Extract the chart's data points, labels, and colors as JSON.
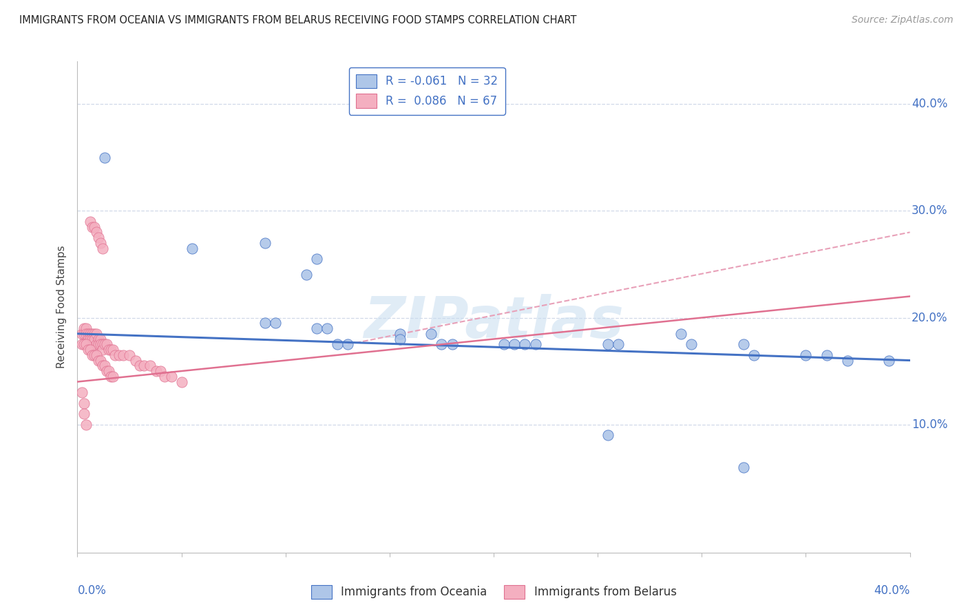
{
  "title": "IMMIGRANTS FROM OCEANIA VS IMMIGRANTS FROM BELARUS RECEIVING FOOD STAMPS CORRELATION CHART",
  "source": "Source: ZipAtlas.com",
  "ylabel": "Receiving Food Stamps",
  "ytick_labels": [
    "10.0%",
    "20.0%",
    "30.0%",
    "40.0%"
  ],
  "ytick_values": [
    0.1,
    0.2,
    0.3,
    0.4
  ],
  "xlim": [
    0.0,
    0.4
  ],
  "ylim": [
    -0.02,
    0.44
  ],
  "watermark": "ZIPatlas",
  "oceania_scatter": [
    [
      0.013,
      0.35
    ],
    [
      0.055,
      0.265
    ],
    [
      0.09,
      0.27
    ],
    [
      0.115,
      0.255
    ],
    [
      0.11,
      0.24
    ],
    [
      0.09,
      0.195
    ],
    [
      0.095,
      0.195
    ],
    [
      0.115,
      0.19
    ],
    [
      0.12,
      0.19
    ],
    [
      0.125,
      0.175
    ],
    [
      0.13,
      0.175
    ],
    [
      0.155,
      0.185
    ],
    [
      0.155,
      0.18
    ],
    [
      0.17,
      0.185
    ],
    [
      0.175,
      0.175
    ],
    [
      0.18,
      0.175
    ],
    [
      0.205,
      0.175
    ],
    [
      0.21,
      0.175
    ],
    [
      0.215,
      0.175
    ],
    [
      0.22,
      0.175
    ],
    [
      0.255,
      0.175
    ],
    [
      0.26,
      0.175
    ],
    [
      0.29,
      0.185
    ],
    [
      0.295,
      0.175
    ],
    [
      0.32,
      0.175
    ],
    [
      0.325,
      0.165
    ],
    [
      0.35,
      0.165
    ],
    [
      0.36,
      0.165
    ],
    [
      0.37,
      0.16
    ],
    [
      0.39,
      0.16
    ],
    [
      0.255,
      0.09
    ],
    [
      0.32,
      0.06
    ]
  ],
  "belarus_scatter": [
    [
      0.002,
      0.185
    ],
    [
      0.003,
      0.19
    ],
    [
      0.003,
      0.185
    ],
    [
      0.004,
      0.19
    ],
    [
      0.004,
      0.185
    ],
    [
      0.005,
      0.185
    ],
    [
      0.005,
      0.18
    ],
    [
      0.006,
      0.185
    ],
    [
      0.006,
      0.18
    ],
    [
      0.007,
      0.185
    ],
    [
      0.007,
      0.18
    ],
    [
      0.007,
      0.175
    ],
    [
      0.008,
      0.185
    ],
    [
      0.008,
      0.18
    ],
    [
      0.009,
      0.185
    ],
    [
      0.009,
      0.175
    ],
    [
      0.01,
      0.18
    ],
    [
      0.01,
      0.175
    ],
    [
      0.011,
      0.18
    ],
    [
      0.011,
      0.175
    ],
    [
      0.012,
      0.175
    ],
    [
      0.012,
      0.17
    ],
    [
      0.013,
      0.175
    ],
    [
      0.014,
      0.175
    ],
    [
      0.015,
      0.17
    ],
    [
      0.016,
      0.17
    ],
    [
      0.017,
      0.17
    ],
    [
      0.018,
      0.165
    ],
    [
      0.02,
      0.165
    ],
    [
      0.022,
      0.165
    ],
    [
      0.025,
      0.165
    ],
    [
      0.028,
      0.16
    ],
    [
      0.03,
      0.155
    ],
    [
      0.032,
      0.155
    ],
    [
      0.035,
      0.155
    ],
    [
      0.038,
      0.15
    ],
    [
      0.04,
      0.15
    ],
    [
      0.042,
      0.145
    ],
    [
      0.045,
      0.145
    ],
    [
      0.05,
      0.14
    ],
    [
      0.002,
      0.175
    ],
    [
      0.003,
      0.175
    ],
    [
      0.004,
      0.175
    ],
    [
      0.005,
      0.17
    ],
    [
      0.006,
      0.17
    ],
    [
      0.007,
      0.165
    ],
    [
      0.008,
      0.165
    ],
    [
      0.009,
      0.165
    ],
    [
      0.01,
      0.16
    ],
    [
      0.011,
      0.16
    ],
    [
      0.012,
      0.155
    ],
    [
      0.013,
      0.155
    ],
    [
      0.014,
      0.15
    ],
    [
      0.015,
      0.15
    ],
    [
      0.016,
      0.145
    ],
    [
      0.017,
      0.145
    ],
    [
      0.006,
      0.29
    ],
    [
      0.007,
      0.285
    ],
    [
      0.008,
      0.285
    ],
    [
      0.009,
      0.28
    ],
    [
      0.01,
      0.275
    ],
    [
      0.011,
      0.27
    ],
    [
      0.012,
      0.265
    ],
    [
      0.002,
      0.13
    ],
    [
      0.003,
      0.12
    ],
    [
      0.003,
      0.11
    ],
    [
      0.004,
      0.1
    ]
  ],
  "blue_color": "#aec6e8",
  "pink_color": "#f4afc0",
  "blue_edge_color": "#4472c4",
  "pink_edge_color": "#e07090",
  "blue_line_color": "#4472c4",
  "pink_line_color": "#e07090",
  "pink_dashed_color": "#e8a0b8",
  "background_color": "#ffffff",
  "grid_color": "#d0d8e8",
  "blue_trend": [
    0.0,
    0.4,
    0.185,
    0.16
  ],
  "pink_trend": [
    0.0,
    0.4,
    0.14,
    0.22
  ],
  "pink_dashed_trend": [
    0.13,
    0.4,
    0.175,
    0.28
  ]
}
